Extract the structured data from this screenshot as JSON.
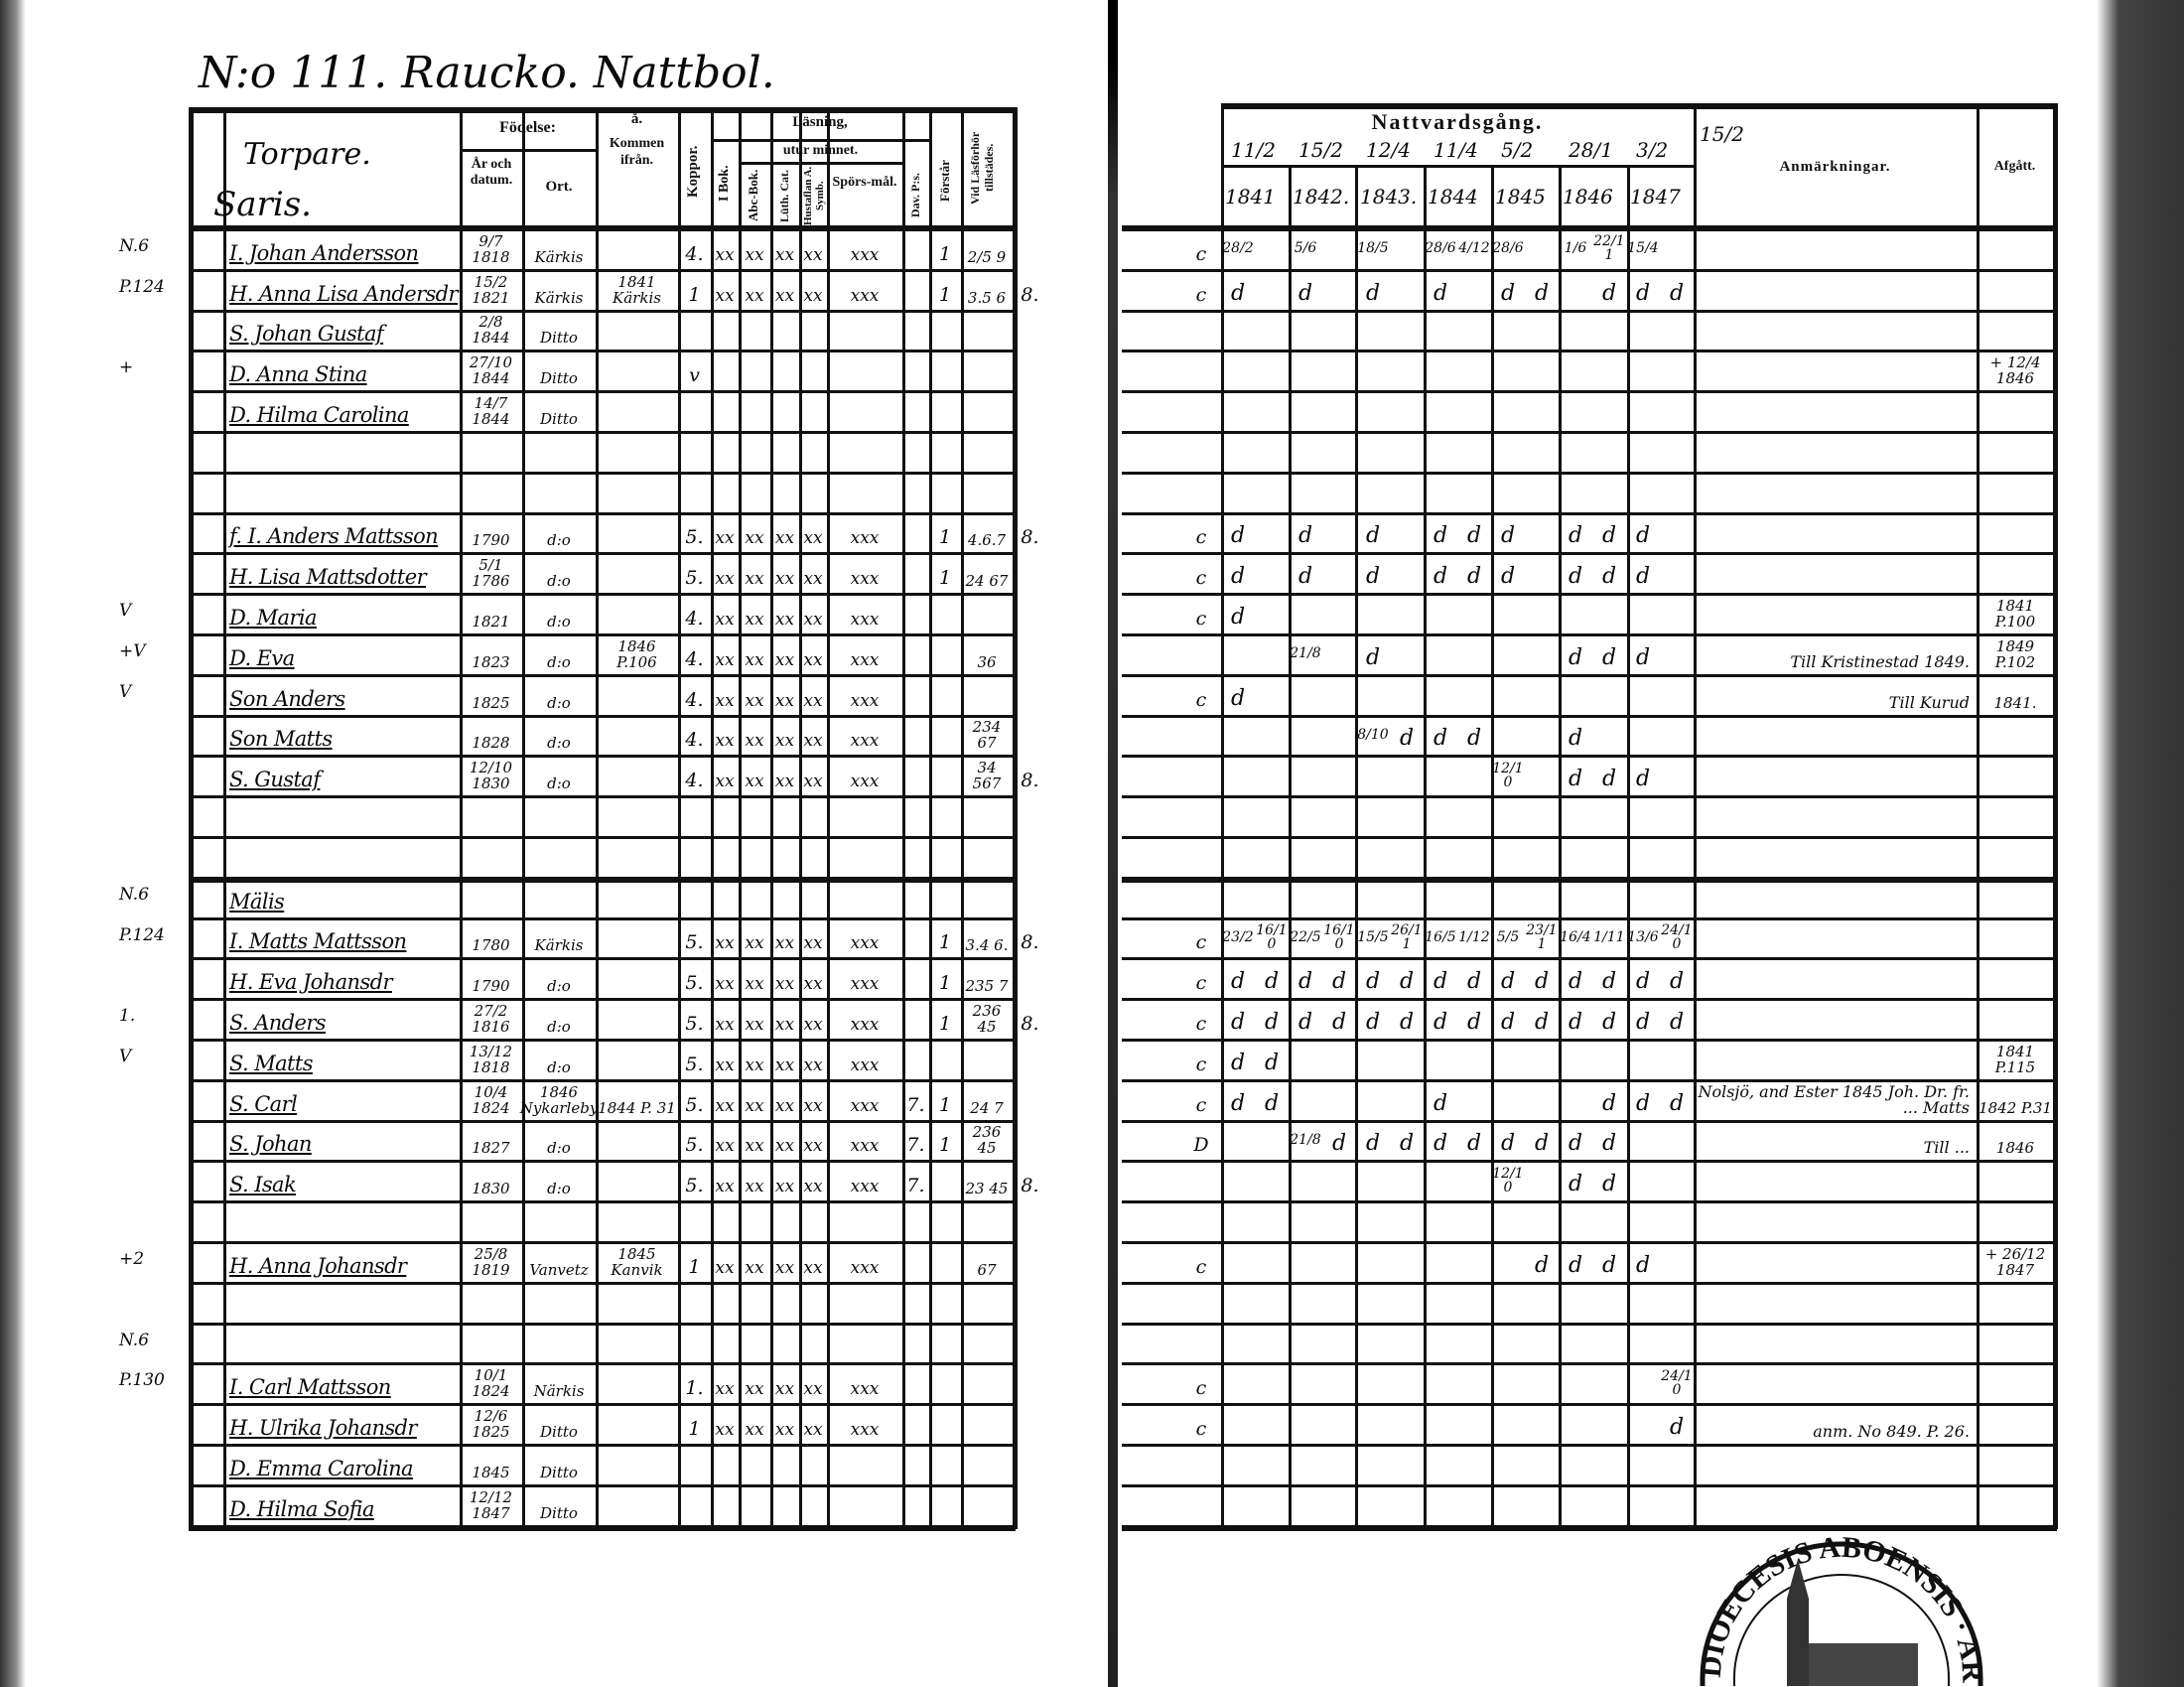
{
  "page_title": "N:o 111. Raucko. Nattbol.",
  "left_header": {
    "category": "Torpare.",
    "village": "Saris.",
    "birth": "Födelse:",
    "year_date": "År och datum.",
    "place": "Ort.",
    "come_from_mark": "å.",
    "come_from": "Kommen ifrån.",
    "smallpox": "Koppor.",
    "reading": "Läsning,",
    "by_heart": "utur minnet.",
    "in_book": "I Bok.",
    "abc_book": "Abc-Bok.",
    "luth_cat": "Lüth. Cat.",
    "house_table": "Hustaflan A. Symb.",
    "questions": "Spörs-mål.",
    "psalms": "Dav. P:s.",
    "understands": "Förstår",
    "attended": "Vid Läsförhör tillstädes."
  },
  "right_header": {
    "communion": "Nattvardsgång.",
    "dates": [
      "11/2",
      "15/2",
      "12/4",
      "11/4",
      "5/2",
      "28/1",
      "3/2",
      "15/2"
    ],
    "years": [
      "1841",
      "1842.",
      "1843.",
      "1844",
      "1845",
      "1846",
      "1847"
    ],
    "remarks": "Anmärkningar.",
    "departed": "Afgått."
  },
  "rows": [
    {
      "m": "N.6",
      "n": "I. Johan Andersson",
      "b": "9/7 1818",
      "o": "Kärkis",
      "k": "",
      "kp": "4.",
      "r": [
        "xx",
        "xx",
        "xx",
        "xx",
        "xxx"
      ],
      "dv": "",
      "f": "1",
      "v": "2/5 9",
      "x": "",
      "c": "c",
      "nv": [
        "28/2",
        "",
        "5/6",
        "",
        "18/5",
        "",
        "28/6",
        "4/12",
        "28/6",
        "",
        "1/6",
        "22/11",
        "15/4",
        ""
      ],
      "rem": "",
      "afg": ""
    },
    {
      "m": "P.124",
      "n": "H. Anna Lisa Andersdr",
      "b": "15/2 1821",
      "o": "Kärkis",
      "k": "1841 Kärkis",
      "kp": "1",
      "r": [
        "xx",
        "xx",
        "xx",
        "xx",
        "xxx"
      ],
      "dv": "",
      "f": "1",
      "v": "3.5 6",
      "x": "8.",
      "c": "c",
      "nv": [
        "d",
        "",
        "d",
        "",
        "d",
        "",
        "d",
        "",
        "d",
        "d",
        "",
        "d",
        "d",
        "d"
      ],
      "rem": "",
      "afg": ""
    },
    {
      "m": "",
      "n": "S. Johan Gustaf",
      "b": "2/8 1844",
      "o": "Ditto",
      "k": "",
      "kp": "",
      "r": [],
      "dv": "",
      "f": "",
      "v": "",
      "x": "",
      "c": "",
      "nv": [],
      "rem": "",
      "afg": ""
    },
    {
      "m": "+",
      "n": "D. Anna Stina",
      "b": "27/10 1844",
      "o": "Ditto",
      "k": "",
      "kp": "v",
      "r": [],
      "dv": "",
      "f": "",
      "v": "",
      "x": "",
      "c": "",
      "nv": [],
      "rem": "",
      "afg": "+ 12/4 1846"
    },
    {
      "m": "",
      "n": "D. Hilma Carolina",
      "b": "14/7 1844",
      "o": "Ditto",
      "k": "",
      "kp": "",
      "r": [],
      "dv": "",
      "f": "",
      "v": "",
      "x": "",
      "c": "",
      "nv": [],
      "rem": "",
      "afg": ""
    },
    {
      "m": "",
      "n": "",
      "b": "",
      "o": "",
      "k": "",
      "kp": "",
      "r": [],
      "dv": "",
      "f": "",
      "v": "",
      "x": "",
      "c": "",
      "nv": [],
      "rem": "",
      "afg": ""
    },
    {
      "m": "",
      "n": "",
      "b": "",
      "o": "",
      "k": "",
      "kp": "",
      "r": [],
      "dv": "",
      "f": "",
      "v": "",
      "x": "",
      "c": "",
      "nv": [],
      "rem": "",
      "afg": ""
    },
    {
      "m": "",
      "n": "f. I. Anders Mattsson",
      "b": "1790",
      "o": "d:o",
      "k": "",
      "kp": "5.",
      "r": [
        "xx",
        "xx",
        "xx",
        "xx",
        "xxx"
      ],
      "dv": "",
      "f": "1",
      "v": "4.6.7",
      "x": "8.",
      "c": "c",
      "nv": [
        "d",
        "",
        "d",
        "",
        "d",
        "",
        "d",
        "d",
        "d",
        "",
        "d",
        "d",
        "d",
        ""
      ],
      "rem": "",
      "afg": ""
    },
    {
      "m": "",
      "n": "H. Lisa Mattsdotter",
      "b": "5/1 1786",
      "o": "d:o",
      "k": "",
      "kp": "5.",
      "r": [
        "xx",
        "xx",
        "xx",
        "xx",
        "xxx"
      ],
      "dv": "",
      "f": "1",
      "v": "24 67",
      "x": "",
      "c": "c",
      "nv": [
        "d",
        "",
        "d",
        "",
        "d",
        "",
        "d",
        "d",
        "d",
        "",
        "d",
        "d",
        "d",
        ""
      ],
      "rem": "",
      "afg": ""
    },
    {
      "m": "V",
      "n": "D. Maria",
      "b": "1821",
      "o": "d:o",
      "k": "",
      "kp": "4.",
      "r": [
        "xx",
        "xx",
        "xx",
        "xx",
        "xxx"
      ],
      "dv": "",
      "f": "",
      "v": "",
      "x": "",
      "c": "c",
      "nv": [
        "d"
      ],
      "rem": "",
      "afg": "1841 P.100"
    },
    {
      "m": "+V",
      "n": "D. Eva",
      "b": "1823",
      "o": "d:o",
      "k": "1846 P.106",
      "kp": "4.",
      "r": [
        "xx",
        "xx",
        "xx",
        "xx",
        "xxx"
      ],
      "dv": "",
      "f": "",
      "v": "36",
      "x": "",
      "c": "",
      "nv": [
        "",
        "",
        "21/8",
        "",
        "d",
        "",
        "",
        "",
        "",
        "",
        "d",
        "d",
        "d",
        ""
      ],
      "rem": "Till Kristinestad 1849.",
      "afg": "1849 P.102"
    },
    {
      "m": "V",
      "n": "Son Anders",
      "b": "1825",
      "o": "d:o",
      "k": "",
      "kp": "4.",
      "r": [
        "xx",
        "xx",
        "xx",
        "xx",
        "xxx"
      ],
      "dv": "",
      "f": "",
      "v": "",
      "x": "",
      "c": "c",
      "nv": [
        "d"
      ],
      "rem": "Till Kurud",
      "afg": "1841."
    },
    {
      "m": "",
      "n": "Son Matts",
      "b": "1828",
      "o": "d:o",
      "k": "",
      "kp": "4.",
      "r": [
        "xx",
        "xx",
        "xx",
        "xx",
        "xxx"
      ],
      "dv": "",
      "f": "",
      "v": "234 67",
      "x": "",
      "c": "",
      "nv": [
        "",
        "",
        "",
        "",
        "8/10",
        "d",
        "d",
        "d",
        "",
        "",
        "d",
        "",
        "",
        ""
      ],
      "rem": "",
      "afg": ""
    },
    {
      "m": "",
      "n": "S. Gustaf",
      "b": "12/10 1830",
      "o": "d:o",
      "k": "",
      "kp": "4.",
      "r": [
        "xx",
        "xx",
        "xx",
        "xx",
        "xxx"
      ],
      "dv": "",
      "f": "",
      "v": "34 567",
      "x": "8.",
      "c": "",
      "nv": [
        "",
        "",
        "",
        "",
        "",
        "",
        "",
        "",
        "12/10",
        "",
        "d",
        "d",
        "d",
        ""
      ],
      "rem": "",
      "afg": ""
    },
    {
      "m": "",
      "n": "",
      "b": "",
      "o": "",
      "k": "",
      "kp": "",
      "r": [],
      "dv": "",
      "f": "",
      "v": "",
      "x": "",
      "c": "",
      "nv": [],
      "rem": "",
      "afg": ""
    },
    {
      "m": "",
      "n": "",
      "b": "",
      "o": "",
      "k": "",
      "kp": "",
      "r": [],
      "dv": "",
      "f": "",
      "v": "",
      "x": "",
      "c": "",
      "nv": [],
      "rem": "",
      "afg": ""
    },
    {
      "m": "N.6",
      "n": "Mälis",
      "b": "",
      "o": "",
      "k": "",
      "kp": "",
      "r": [],
      "dv": "",
      "f": "",
      "v": "",
      "x": "",
      "c": "",
      "nv": [],
      "rem": "",
      "afg": ""
    },
    {
      "m": "P.124",
      "n": "I. Matts Mattsson",
      "b": "1780",
      "o": "Kärkis",
      "k": "",
      "kp": "5.",
      "r": [
        "xx",
        "xx",
        "xx",
        "xx",
        "xxx"
      ],
      "dv": "",
      "f": "1",
      "v": "3.4 6.",
      "x": "8.",
      "c": "c",
      "nv": [
        "23/2",
        "16/10",
        "22/5",
        "16/10",
        "15/5",
        "26/11",
        "16/5",
        "1/12",
        "5/5",
        "23/11",
        "16/4",
        "1/11",
        "13/6",
        "24/10"
      ],
      "rem": "",
      "afg": ""
    },
    {
      "m": "",
      "n": "H. Eva Johansdr",
      "b": "1790",
      "o": "d:o",
      "k": "",
      "kp": "5.",
      "r": [
        "xx",
        "xx",
        "xx",
        "xx",
        "xxx"
      ],
      "dv": "",
      "f": "1",
      "v": "235 7",
      "x": "",
      "c": "c",
      "nv": [
        "d",
        "d",
        "d",
        "d",
        "d",
        "d",
        "d",
        "d",
        "d",
        "d",
        "d",
        "d",
        "d",
        "d"
      ],
      "rem": "",
      "afg": ""
    },
    {
      "m": "1.",
      "n": "S. Anders",
      "b": "27/2 1816",
      "o": "d:o",
      "k": "",
      "kp": "5.",
      "r": [
        "xx",
        "xx",
        "xx",
        "xx",
        "xxx"
      ],
      "dv": "",
      "f": "1",
      "v": "236 45",
      "x": "8.",
      "c": "c",
      "nv": [
        "d",
        "d",
        "d",
        "d",
        "d",
        "d",
        "d",
        "d",
        "d",
        "d",
        "d",
        "d",
        "d",
        "d"
      ],
      "rem": "",
      "afg": ""
    },
    {
      "m": "V",
      "n": "S. Matts",
      "b": "13/12 1818",
      "o": "d:o",
      "k": "",
      "kp": "5.",
      "r": [
        "xx",
        "xx",
        "xx",
        "xx",
        "xxx"
      ],
      "dv": "",
      "f": "",
      "v": "",
      "x": "",
      "c": "c",
      "nv": [
        "d",
        "d"
      ],
      "rem": "",
      "afg": "1841 P.115"
    },
    {
      "m": "",
      "n": "S. Carl",
      "b": "10/4 1824",
      "o": "1846 Nykarleby",
      "k": "1844 P. 31",
      "kp": "5.",
      "r": [
        "xx",
        "xx",
        "xx",
        "xx",
        "xxx"
      ],
      "dv": "7.",
      "f": "1",
      "v": "24 7",
      "x": "",
      "c": "c",
      "nv": [
        "d",
        "d",
        "",
        "",
        "",
        "",
        "d",
        "",
        "",
        "",
        "",
        "d",
        "d",
        "d"
      ],
      "rem": "Nolsjö, and Ester 1845 Joh. Dr. fr. ... Matts",
      "afg": "1842 P.31"
    },
    {
      "m": "",
      "n": "S. Johan",
      "b": "1827",
      "o": "d:o",
      "k": "",
      "kp": "5.",
      "r": [
        "xx",
        "xx",
        "xx",
        "xx",
        "xxx"
      ],
      "dv": "7.",
      "f": "1",
      "v": "236 45",
      "x": "",
      "c": "D",
      "nv": [
        "",
        "",
        "21/8",
        "d",
        "d",
        "d",
        "d",
        "d",
        "d",
        "d",
        "d",
        "d",
        "",
        ""
      ],
      "rem": "Till ...",
      "afg": "1846"
    },
    {
      "m": "",
      "n": "S. Isak",
      "b": "1830",
      "o": "d:o",
      "k": "",
      "kp": "5.",
      "r": [
        "xx",
        "xx",
        "xx",
        "xx",
        "xxx"
      ],
      "dv": "7.",
      "f": "",
      "v": "23 45",
      "x": "8.",
      "c": "",
      "nv": [
        "",
        "",
        "",
        "",
        "",
        "",
        "",
        "",
        "12/10",
        "",
        "d",
        "d",
        "",
        ""
      ],
      "rem": "",
      "afg": ""
    },
    {
      "m": "",
      "n": "",
      "b": "",
      "o": "",
      "k": "",
      "kp": "",
      "r": [],
      "dv": "",
      "f": "",
      "v": "",
      "x": "",
      "c": "",
      "nv": [],
      "rem": "",
      "afg": ""
    },
    {
      "m": "+2",
      "n": "H. Anna Johansdr",
      "b": "25/8 1819",
      "o": "Vanvetz",
      "k": "1845 Kanvik",
      "kp": "1",
      "r": [
        "xx",
        "xx",
        "xx",
        "xx",
        "xxx"
      ],
      "dv": "",
      "f": "",
      "v": "67",
      "x": "",
      "c": "c",
      "nv": [
        "",
        "",
        "",
        "",
        "",
        "",
        "",
        "",
        "",
        "d",
        "d",
        "d",
        "d",
        ""
      ],
      "rem": "",
      "afg": "+ 26/12 1847"
    },
    {
      "m": "",
      "n": "",
      "b": "",
      "o": "",
      "k": "",
      "kp": "",
      "r": [],
      "dv": "",
      "f": "",
      "v": "",
      "x": "",
      "c": "",
      "nv": [],
      "rem": "",
      "afg": ""
    },
    {
      "m": "N.6",
      "n": "",
      "b": "",
      "o": "",
      "k": "",
      "kp": "",
      "r": [],
      "dv": "",
      "f": "",
      "v": "",
      "x": "",
      "c": "",
      "nv": [],
      "rem": "",
      "afg": ""
    },
    {
      "m": "P.130",
      "n": "I. Carl Mattsson",
      "b": "10/1 1824",
      "o": "Närkis",
      "k": "",
      "kp": "1.",
      "r": [
        "xx",
        "xx",
        "xx",
        "xx",
        "xxx"
      ],
      "dv": "",
      "f": "",
      "v": "",
      "x": "",
      "c": "c",
      "nv": [
        "",
        "",
        "",
        "",
        "",
        "",
        "",
        "",
        "",
        "",
        "",
        "",
        "",
        "24/10"
      ],
      "rem": "",
      "afg": ""
    },
    {
      "m": "",
      "n": "H. Ulrika Johansdr",
      "b": "12/6 1825",
      "o": "Ditto",
      "k": "",
      "kp": "1",
      "r": [
        "xx",
        "xx",
        "xx",
        "xx",
        "xxx"
      ],
      "dv": "",
      "f": "",
      "v": "",
      "x": "",
      "c": "c",
      "nv": [
        "",
        "",
        "",
        "",
        "",
        "",
        "",
        "",
        "",
        "",
        "",
        "",
        "",
        "d"
      ],
      "rem": "anm. No 849. P. 26.",
      "afg": ""
    },
    {
      "m": "",
      "n": "D. Emma Carolina",
      "b": "1845",
      "o": "Ditto",
      "k": "",
      "kp": "",
      "r": [],
      "dv": "",
      "f": "",
      "v": "",
      "x": "",
      "c": "",
      "nv": [],
      "rem": "",
      "afg": ""
    },
    {
      "m": "",
      "n": "D. Hilma Sofia",
      "b": "12/12 1847",
      "o": "Ditto",
      "k": "",
      "kp": "",
      "r": [],
      "dv": "",
      "f": "",
      "v": "",
      "x": "",
      "c": "",
      "nv": [],
      "rem": "",
      "afg": ""
    }
  ],
  "stamp": {
    "text": "DIOECESIS ABOENSIS · ARCH · VINL ·"
  },
  "colors": {
    "ink": "#111111",
    "paper": "#ffffff",
    "scan_edge": "#2a2a2a"
  }
}
